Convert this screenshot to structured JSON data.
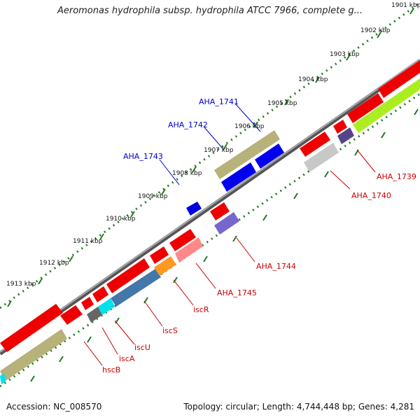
{
  "title": "Aeromonas hydrophila subsp. hydrophila ATCC 7966, complete g...",
  "footer": {
    "accession": "Accession: NC_008570",
    "summary": "Topology: circular; Length: 4,744,448 bp; Genes: 4,281"
  },
  "colors": {
    "scale_dots": "#1f7a1f",
    "backbone": "#8a8a8a",
    "label_red": "#cc0000",
    "label_blue": "#0000cc"
  },
  "ruler": {
    "ticks": [
      "1901 kbp",
      "1902 kbp",
      "1903 kbp",
      "1904 kbp",
      "1905 kbp",
      "1906 kbp",
      "1907 kbp",
      "1908 kbp",
      "1909 kbp",
      "1910 kbp",
      "1911 kbp",
      "1912 kbp",
      "1913 kbp"
    ]
  },
  "features": {
    "forward": [
      {
        "name": "AHA_1741",
        "color": "#b7b17a"
      },
      {
        "name": "AHA_1742",
        "color": "#0000ee"
      },
      {
        "name": "AHA_1743",
        "color": "#0000dd"
      }
    ],
    "reverse": [
      {
        "name": "AHA_1739",
        "color": "#aaee22"
      },
      {
        "name": "AHA_1740",
        "color": "#c8c8c8"
      },
      {
        "name": "AHA_1744",
        "color": "#7766cc"
      },
      {
        "name": "AHA_1745",
        "color": "#ff8888"
      },
      {
        "name": "iscR",
        "color": "#ff9922"
      },
      {
        "name": "iscS",
        "color": "#4477aa"
      },
      {
        "name": "iscU",
        "color": "#00e0ee"
      },
      {
        "name": "iscA",
        "color": "#666666"
      },
      {
        "name": "hscB",
        "color": "#b7b17a"
      }
    ]
  }
}
